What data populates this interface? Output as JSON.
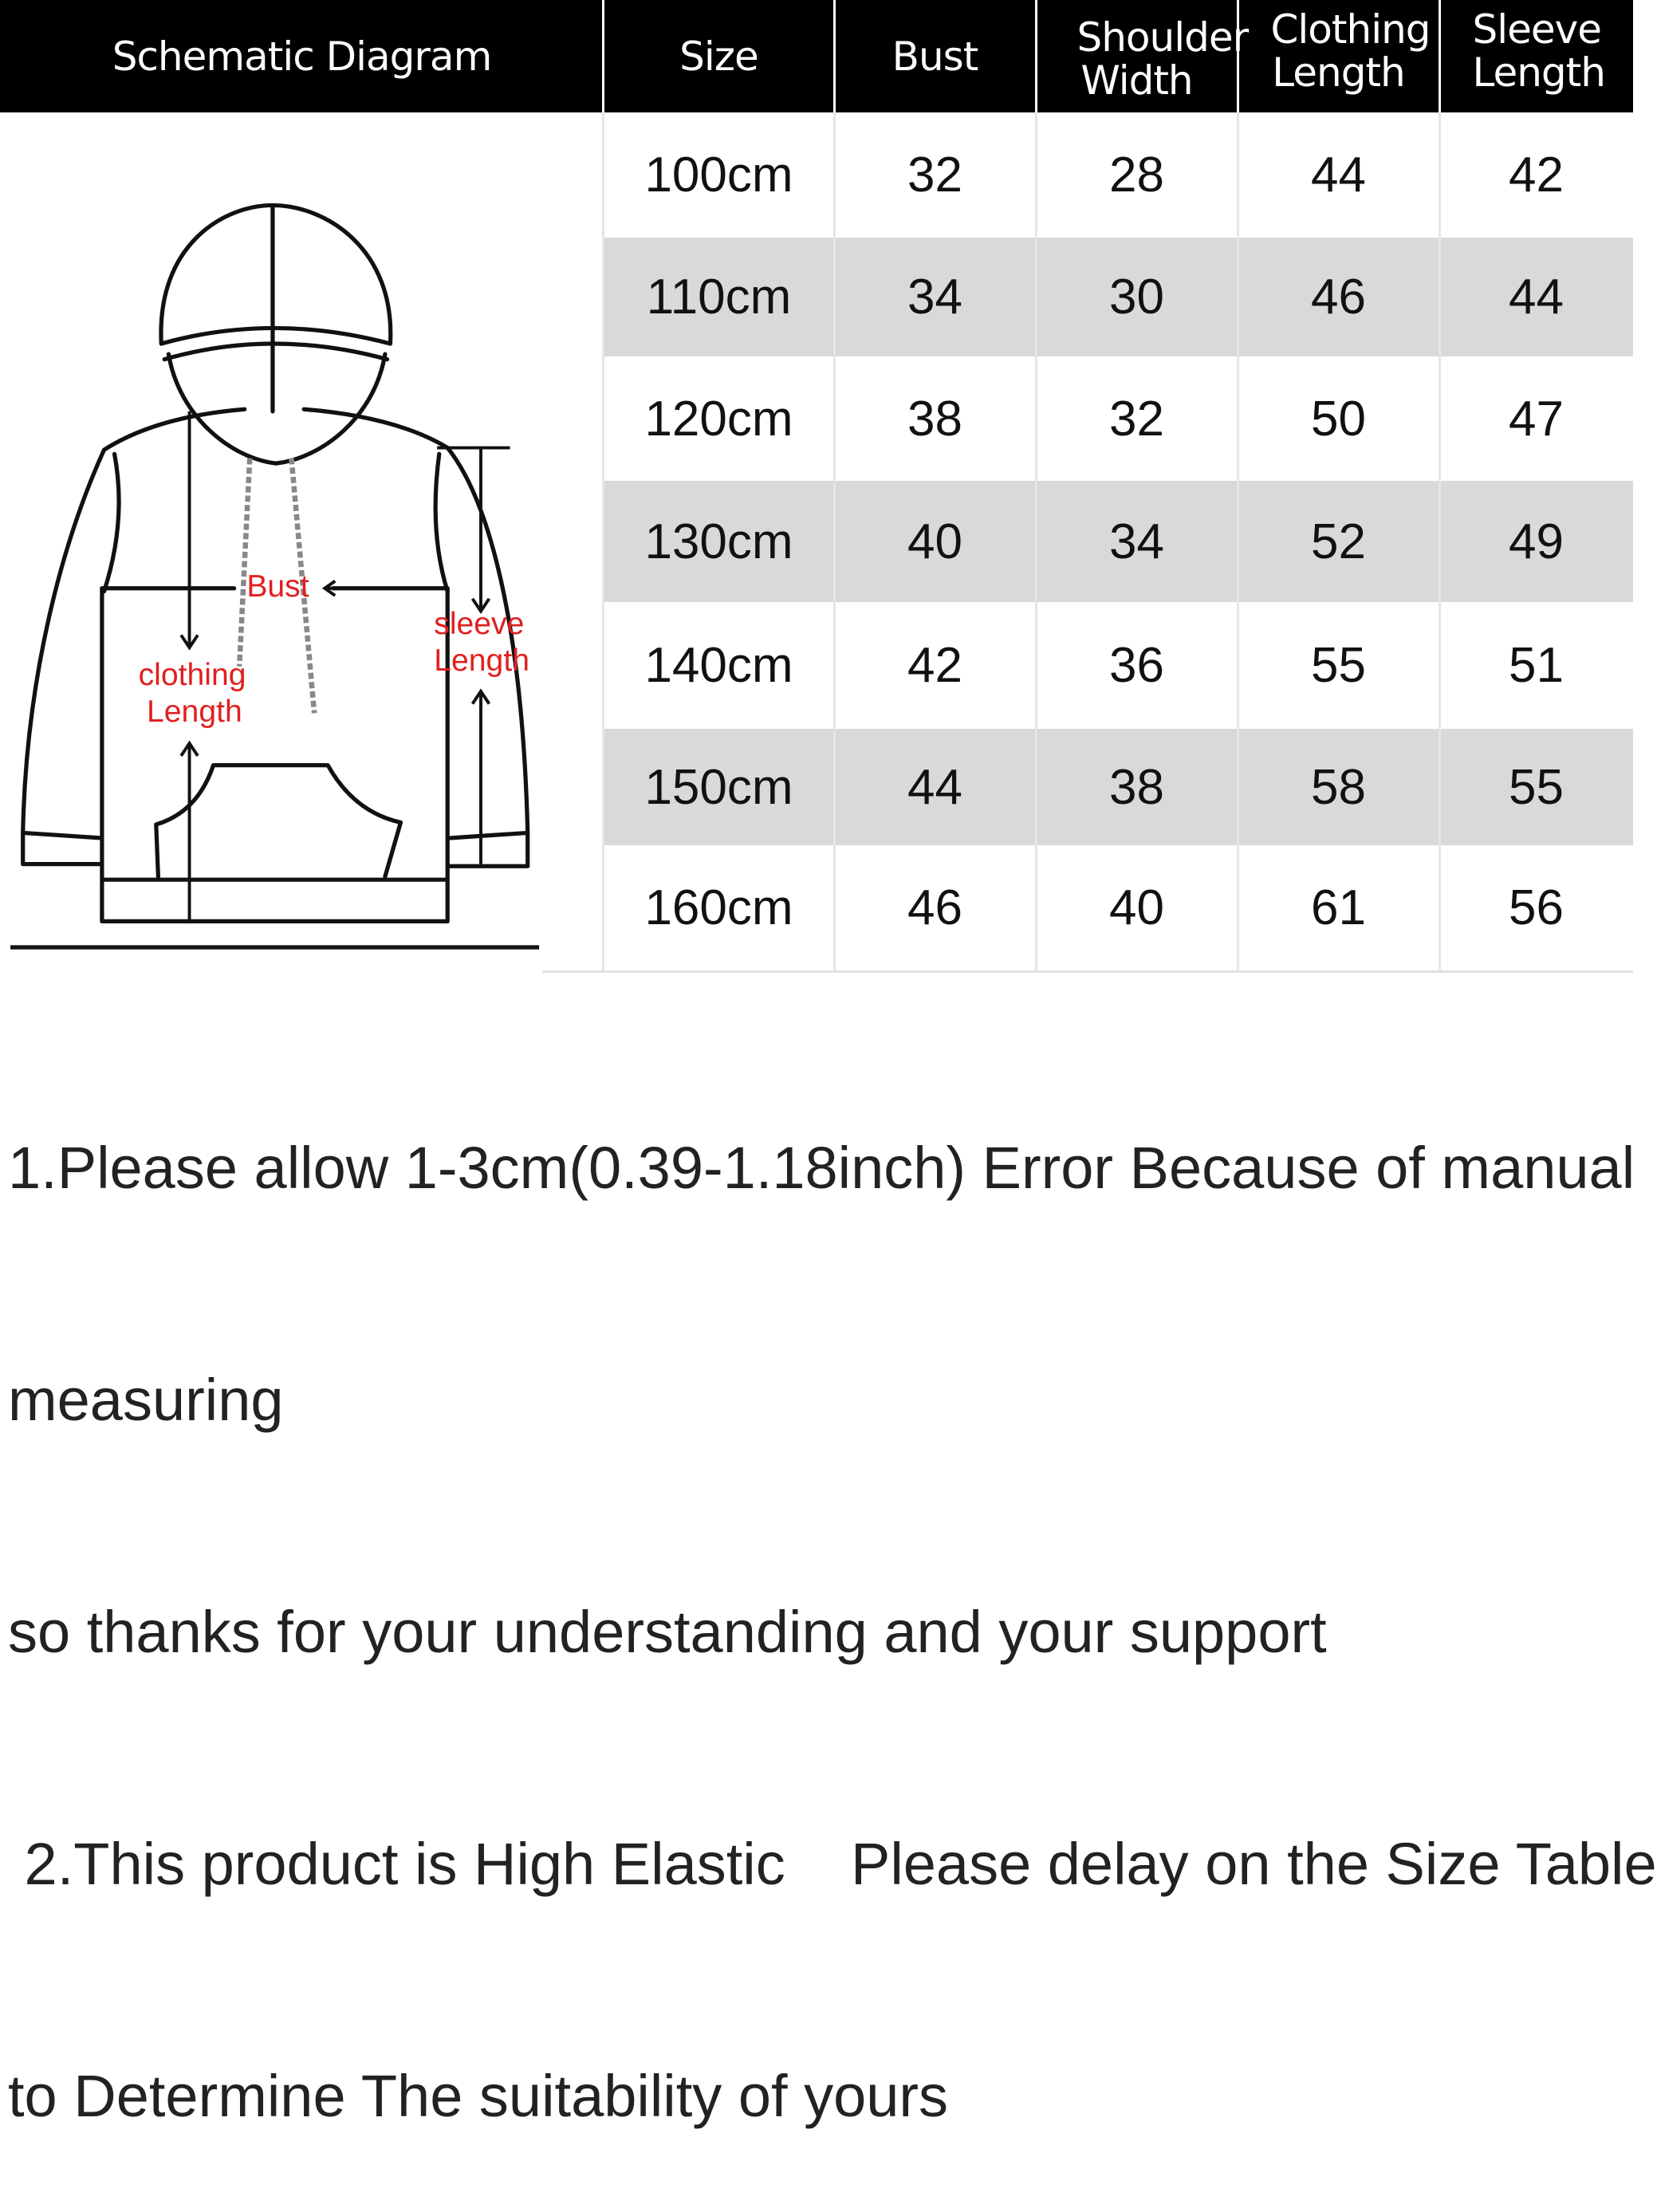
{
  "header": {
    "columns": [
      "Schematic Diagram",
      "Size",
      "Bust",
      "Shoulder Width",
      "Clothing Length",
      "Sleeve Length"
    ]
  },
  "diagram": {
    "labels": {
      "bust": "Bust",
      "sleeve_1": "sleeve",
      "sleeve_2": "Length",
      "clothing_1": "clothing",
      "clothing_2": "Length"
    },
    "label_color": "#e02020"
  },
  "rows": [
    {
      "size": "100cm",
      "bust": "32",
      "shoulder": "28",
      "clothing": "44",
      "sleeve": "42"
    },
    {
      "size": "110cm",
      "bust": "34",
      "shoulder": "30",
      "clothing": "46",
      "sleeve": "44"
    },
    {
      "size": "120cm",
      "bust": "38",
      "shoulder": "32",
      "clothing": "50",
      "sleeve": "47"
    },
    {
      "size": "130cm",
      "bust": "40",
      "shoulder": "34",
      "clothing": "52",
      "sleeve": "49"
    },
    {
      "size": "140cm",
      "bust": "42",
      "shoulder": "36",
      "clothing": "55",
      "sleeve": "51"
    },
    {
      "size": "150cm",
      "bust": "44",
      "shoulder": "38",
      "clothing": "58",
      "sleeve": "55"
    },
    {
      "size": "160cm",
      "bust": "46",
      "shoulder": "40",
      "clothing": "61",
      "sleeve": "56"
    }
  ],
  "notes": [
    "1.Please allow 1-3cm(0.39-1.18inch) Error Because of manual",
    "measuring",
    "so thanks for your understanding and your support",
    " 2.This product is High Elastic    Please delay on the Size Table",
    "to Determine The suitability of yours"
  ]
}
